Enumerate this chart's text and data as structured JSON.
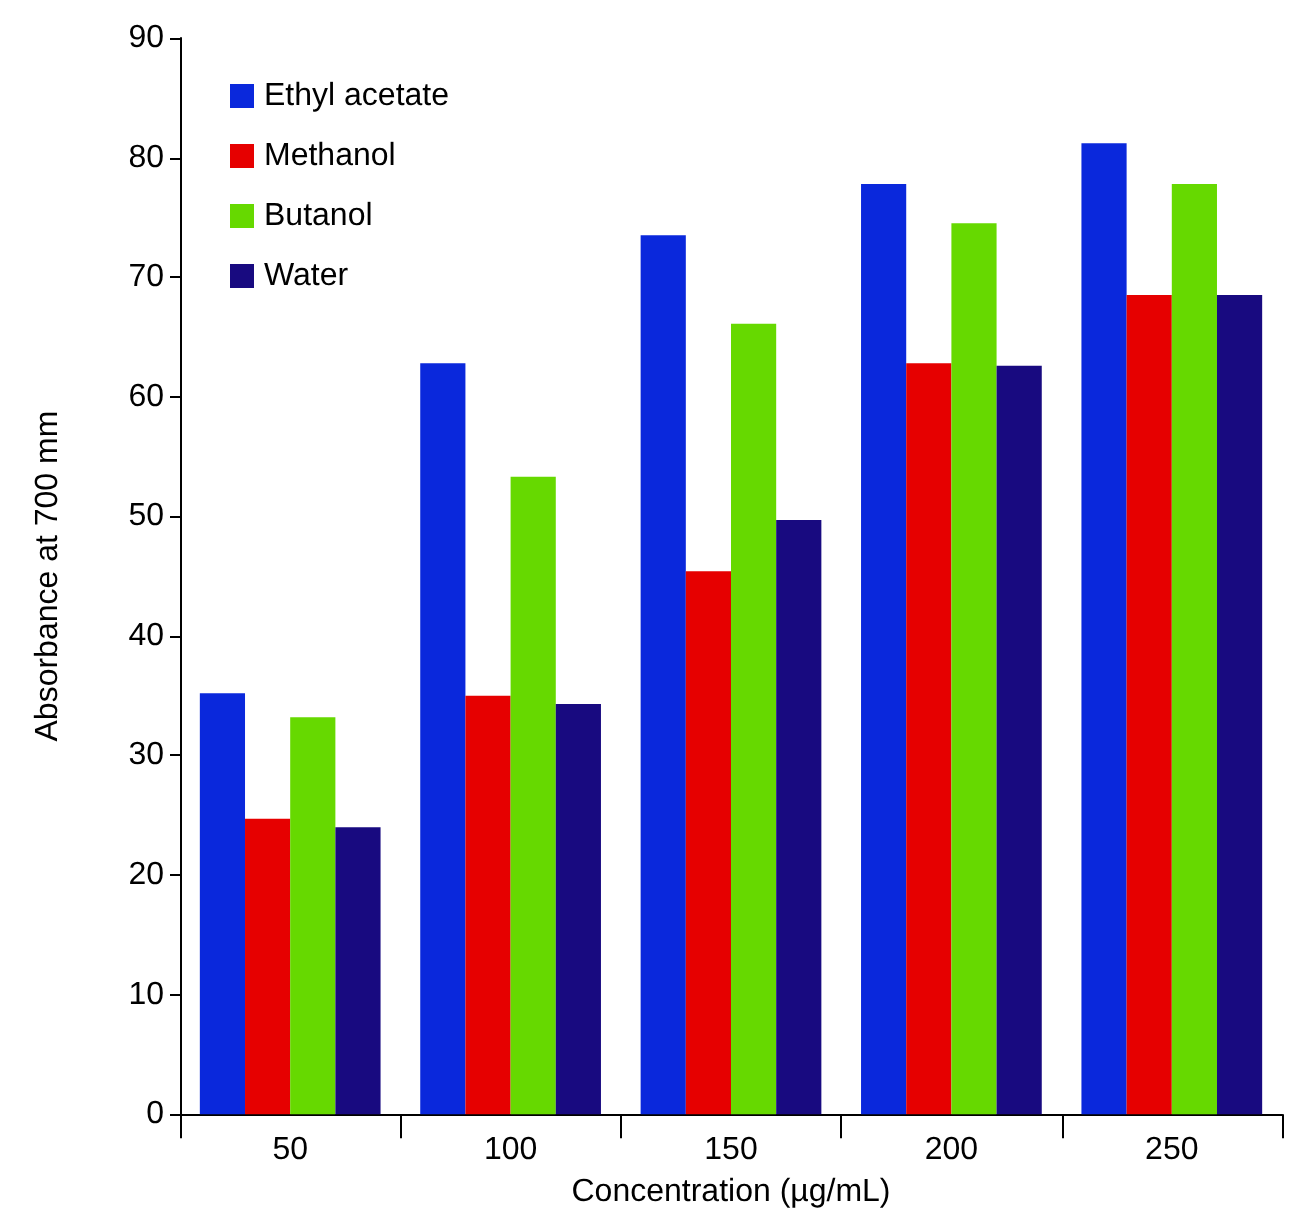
{
  "chart_data": {
    "type": "bar",
    "xlabel": "Concentration (µg/mL)",
    "ylabel": "Absorbance at 700 mm",
    "categories": [
      "50",
      "100",
      "150",
      "200",
      "250"
    ],
    "series": [
      {
        "name": "Ethyl acetate",
        "color": "#0a28dc",
        "values": [
          35.2,
          62.8,
          73.5,
          77.8,
          81.2
        ]
      },
      {
        "name": "Methanol",
        "color": "#e60000",
        "values": [
          24.7,
          35.0,
          45.4,
          62.8,
          68.5
        ]
      },
      {
        "name": "Butanol",
        "color": "#66d900",
        "values": [
          33.2,
          53.3,
          66.1,
          74.5,
          77.8
        ]
      },
      {
        "name": "Water",
        "color": "#180a80",
        "values": [
          24.0,
          34.3,
          49.7,
          62.6,
          68.5
        ]
      }
    ],
    "ylim": [
      0,
      90
    ],
    "yticks": [
      0,
      10,
      20,
      30,
      40,
      50,
      60,
      70,
      80,
      90
    ],
    "grid": false,
    "legend": "top left"
  }
}
